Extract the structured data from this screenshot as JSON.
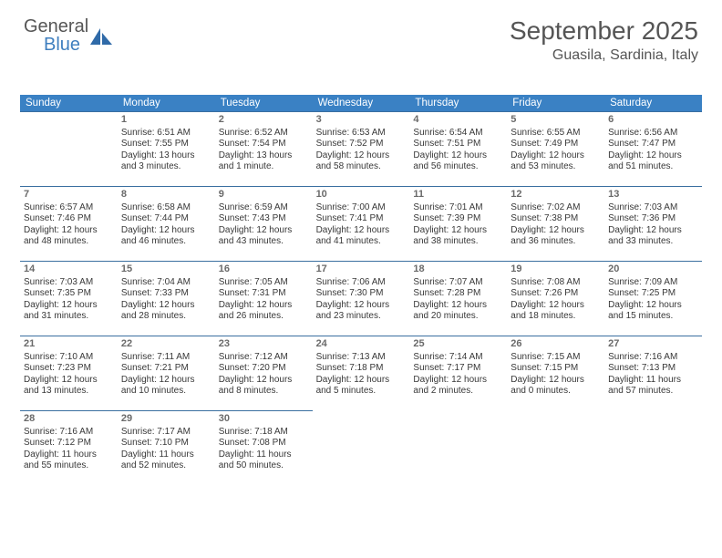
{
  "brand": {
    "word1": "General",
    "word2": "Blue",
    "color_primary": "#3a81c4",
    "color_text": "#555"
  },
  "header": {
    "month_title": "September 2025",
    "location": "Guasila, Sardinia, Italy"
  },
  "dow_labels": [
    "Sunday",
    "Monday",
    "Tuesday",
    "Wednesday",
    "Thursday",
    "Friday",
    "Saturday"
  ],
  "colors": {
    "dow_bg": "#3a81c4",
    "dow_fg": "#ffffff",
    "cell_border": "#3a6fa0",
    "text": "#383838",
    "daynum": "#6a6a6a",
    "background": "#ffffff"
  },
  "typography": {
    "title_pt": 28,
    "location_pt": 16,
    "dow_pt": 11.5,
    "cell_pt": 10,
    "daynum_pt": 11
  },
  "layout": {
    "cols": 7,
    "rows": 6,
    "start_offset": 1
  },
  "days": [
    {
      "n": 1,
      "sunrise": "6:51 AM",
      "sunset": "7:55 PM",
      "daylight": "13 hours and 3 minutes."
    },
    {
      "n": 2,
      "sunrise": "6:52 AM",
      "sunset": "7:54 PM",
      "daylight": "13 hours and 1 minute."
    },
    {
      "n": 3,
      "sunrise": "6:53 AM",
      "sunset": "7:52 PM",
      "daylight": "12 hours and 58 minutes."
    },
    {
      "n": 4,
      "sunrise": "6:54 AM",
      "sunset": "7:51 PM",
      "daylight": "12 hours and 56 minutes."
    },
    {
      "n": 5,
      "sunrise": "6:55 AM",
      "sunset": "7:49 PM",
      "daylight": "12 hours and 53 minutes."
    },
    {
      "n": 6,
      "sunrise": "6:56 AM",
      "sunset": "7:47 PM",
      "daylight": "12 hours and 51 minutes."
    },
    {
      "n": 7,
      "sunrise": "6:57 AM",
      "sunset": "7:46 PM",
      "daylight": "12 hours and 48 minutes."
    },
    {
      "n": 8,
      "sunrise": "6:58 AM",
      "sunset": "7:44 PM",
      "daylight": "12 hours and 46 minutes."
    },
    {
      "n": 9,
      "sunrise": "6:59 AM",
      "sunset": "7:43 PM",
      "daylight": "12 hours and 43 minutes."
    },
    {
      "n": 10,
      "sunrise": "7:00 AM",
      "sunset": "7:41 PM",
      "daylight": "12 hours and 41 minutes."
    },
    {
      "n": 11,
      "sunrise": "7:01 AM",
      "sunset": "7:39 PM",
      "daylight": "12 hours and 38 minutes."
    },
    {
      "n": 12,
      "sunrise": "7:02 AM",
      "sunset": "7:38 PM",
      "daylight": "12 hours and 36 minutes."
    },
    {
      "n": 13,
      "sunrise": "7:03 AM",
      "sunset": "7:36 PM",
      "daylight": "12 hours and 33 minutes."
    },
    {
      "n": 14,
      "sunrise": "7:03 AM",
      "sunset": "7:35 PM",
      "daylight": "12 hours and 31 minutes."
    },
    {
      "n": 15,
      "sunrise": "7:04 AM",
      "sunset": "7:33 PM",
      "daylight": "12 hours and 28 minutes."
    },
    {
      "n": 16,
      "sunrise": "7:05 AM",
      "sunset": "7:31 PM",
      "daylight": "12 hours and 26 minutes."
    },
    {
      "n": 17,
      "sunrise": "7:06 AM",
      "sunset": "7:30 PM",
      "daylight": "12 hours and 23 minutes."
    },
    {
      "n": 18,
      "sunrise": "7:07 AM",
      "sunset": "7:28 PM",
      "daylight": "12 hours and 20 minutes."
    },
    {
      "n": 19,
      "sunrise": "7:08 AM",
      "sunset": "7:26 PM",
      "daylight": "12 hours and 18 minutes."
    },
    {
      "n": 20,
      "sunrise": "7:09 AM",
      "sunset": "7:25 PM",
      "daylight": "12 hours and 15 minutes."
    },
    {
      "n": 21,
      "sunrise": "7:10 AM",
      "sunset": "7:23 PM",
      "daylight": "12 hours and 13 minutes."
    },
    {
      "n": 22,
      "sunrise": "7:11 AM",
      "sunset": "7:21 PM",
      "daylight": "12 hours and 10 minutes."
    },
    {
      "n": 23,
      "sunrise": "7:12 AM",
      "sunset": "7:20 PM",
      "daylight": "12 hours and 8 minutes."
    },
    {
      "n": 24,
      "sunrise": "7:13 AM",
      "sunset": "7:18 PM",
      "daylight": "12 hours and 5 minutes."
    },
    {
      "n": 25,
      "sunrise": "7:14 AM",
      "sunset": "7:17 PM",
      "daylight": "12 hours and 2 minutes."
    },
    {
      "n": 26,
      "sunrise": "7:15 AM",
      "sunset": "7:15 PM",
      "daylight": "12 hours and 0 minutes."
    },
    {
      "n": 27,
      "sunrise": "7:16 AM",
      "sunset": "7:13 PM",
      "daylight": "11 hours and 57 minutes."
    },
    {
      "n": 28,
      "sunrise": "7:16 AM",
      "sunset": "7:12 PM",
      "daylight": "11 hours and 55 minutes."
    },
    {
      "n": 29,
      "sunrise": "7:17 AM",
      "sunset": "7:10 PM",
      "daylight": "11 hours and 52 minutes."
    },
    {
      "n": 30,
      "sunrise": "7:18 AM",
      "sunset": "7:08 PM",
      "daylight": "11 hours and 50 minutes."
    }
  ],
  "labels": {
    "sunrise_prefix": "Sunrise: ",
    "sunset_prefix": "Sunset: ",
    "daylight_prefix": "Daylight: "
  }
}
